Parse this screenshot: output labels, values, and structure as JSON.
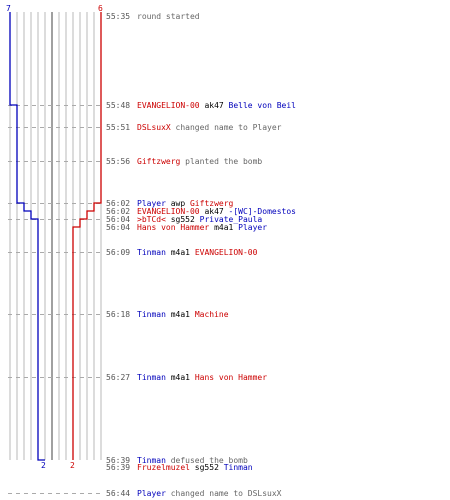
{
  "colors": {
    "blue": "#0000bb",
    "red": "#cc0000",
    "grid": "#b8b8b8",
    "grid_center": "#808080",
    "dash": "#aaaaaa",
    "time": "#555555",
    "msg": "#666666",
    "weapon": "#000000"
  },
  "chart_data": {
    "type": "line",
    "start_counts": {
      "blue": "7",
      "red": "6"
    },
    "end_counts": {
      "blue": "2",
      "red": "2"
    },
    "series": [
      {
        "team": "blue",
        "values": [
          7,
          6,
          5,
          4,
          3,
          2
        ]
      },
      {
        "team": "red",
        "values": [
          6,
          5,
          4,
          3,
          2
        ]
      }
    ]
  },
  "events": [
    {
      "id": "e1",
      "time": "55:35",
      "tokens": [
        {
          "text": "round started",
          "role": "msg"
        }
      ]
    },
    {
      "id": "e2",
      "time": "55:48",
      "tokens": [
        {
          "text": "EVANGELION-00",
          "role": "red"
        },
        {
          "text": "ak47",
          "role": "weapon"
        },
        {
          "text": "Belle von Beil",
          "role": "blue"
        }
      ]
    },
    {
      "id": "e3",
      "time": "55:51",
      "tokens": [
        {
          "text": "DSLsuxX",
          "role": "red"
        },
        {
          "text": "changed name to Player",
          "role": "msg"
        }
      ]
    },
    {
      "id": "e4",
      "time": "55:56",
      "tokens": [
        {
          "text": "Giftzwerg",
          "role": "red"
        },
        {
          "text": "planted the bomb",
          "role": "msg"
        }
      ]
    },
    {
      "id": "e5",
      "time": "56:02",
      "tokens": [
        {
          "text": "Player",
          "role": "blue"
        },
        {
          "text": "awp",
          "role": "weapon"
        },
        {
          "text": "Giftzwerg",
          "role": "red"
        }
      ]
    },
    {
      "id": "e6",
      "time": "56:02",
      "tokens": [
        {
          "text": "EVANGELION-00",
          "role": "red"
        },
        {
          "text": "ak47",
          "role": "weapon"
        },
        {
          "text": "-[WC]-Domestos",
          "role": "blue"
        }
      ]
    },
    {
      "id": "e7",
      "time": "56:04",
      "tokens": [
        {
          "text": ">bTCd<",
          "role": "red"
        },
        {
          "text": "sg552",
          "role": "weapon"
        },
        {
          "text": "Private_Paula",
          "role": "blue"
        }
      ]
    },
    {
      "id": "e8",
      "time": "56:04",
      "tokens": [
        {
          "text": "Hans von Hammer",
          "role": "red"
        },
        {
          "text": "m4a1",
          "role": "weapon"
        },
        {
          "text": "Player",
          "role": "blue"
        }
      ]
    },
    {
      "id": "e9",
      "time": "56:09",
      "tokens": [
        {
          "text": "Tinman",
          "role": "blue"
        },
        {
          "text": "m4a1",
          "role": "weapon"
        },
        {
          "text": "EVANGELION-00",
          "role": "red"
        }
      ]
    },
    {
      "id": "e10",
      "time": "56:18",
      "tokens": [
        {
          "text": "Tinman",
          "role": "blue"
        },
        {
          "text": "m4a1",
          "role": "weapon"
        },
        {
          "text": "Machine",
          "role": "red"
        }
      ]
    },
    {
      "id": "e11",
      "time": "56:27",
      "tokens": [
        {
          "text": "Tinman",
          "role": "blue"
        },
        {
          "text": "m4a1",
          "role": "weapon"
        },
        {
          "text": "Hans von Hammer",
          "role": "red"
        }
      ]
    },
    {
      "id": "e12",
      "time": "56:39",
      "tokens": [
        {
          "text": "Tinman",
          "role": "blue"
        },
        {
          "text": "defused the bomb",
          "role": "msg"
        }
      ]
    },
    {
      "id": "e13",
      "time": "56:39",
      "tokens": [
        {
          "text": "Fruzelmuzel",
          "role": "red"
        },
        {
          "text": "sg552",
          "role": "weapon"
        },
        {
          "text": "Tinman",
          "role": "blue"
        }
      ]
    },
    {
      "id": "e14",
      "time": "56:44",
      "tokens": [
        {
          "text": "Player",
          "role": "blue"
        },
        {
          "text": "changed name to DSLsuxX",
          "role": "msg"
        }
      ]
    }
  ]
}
